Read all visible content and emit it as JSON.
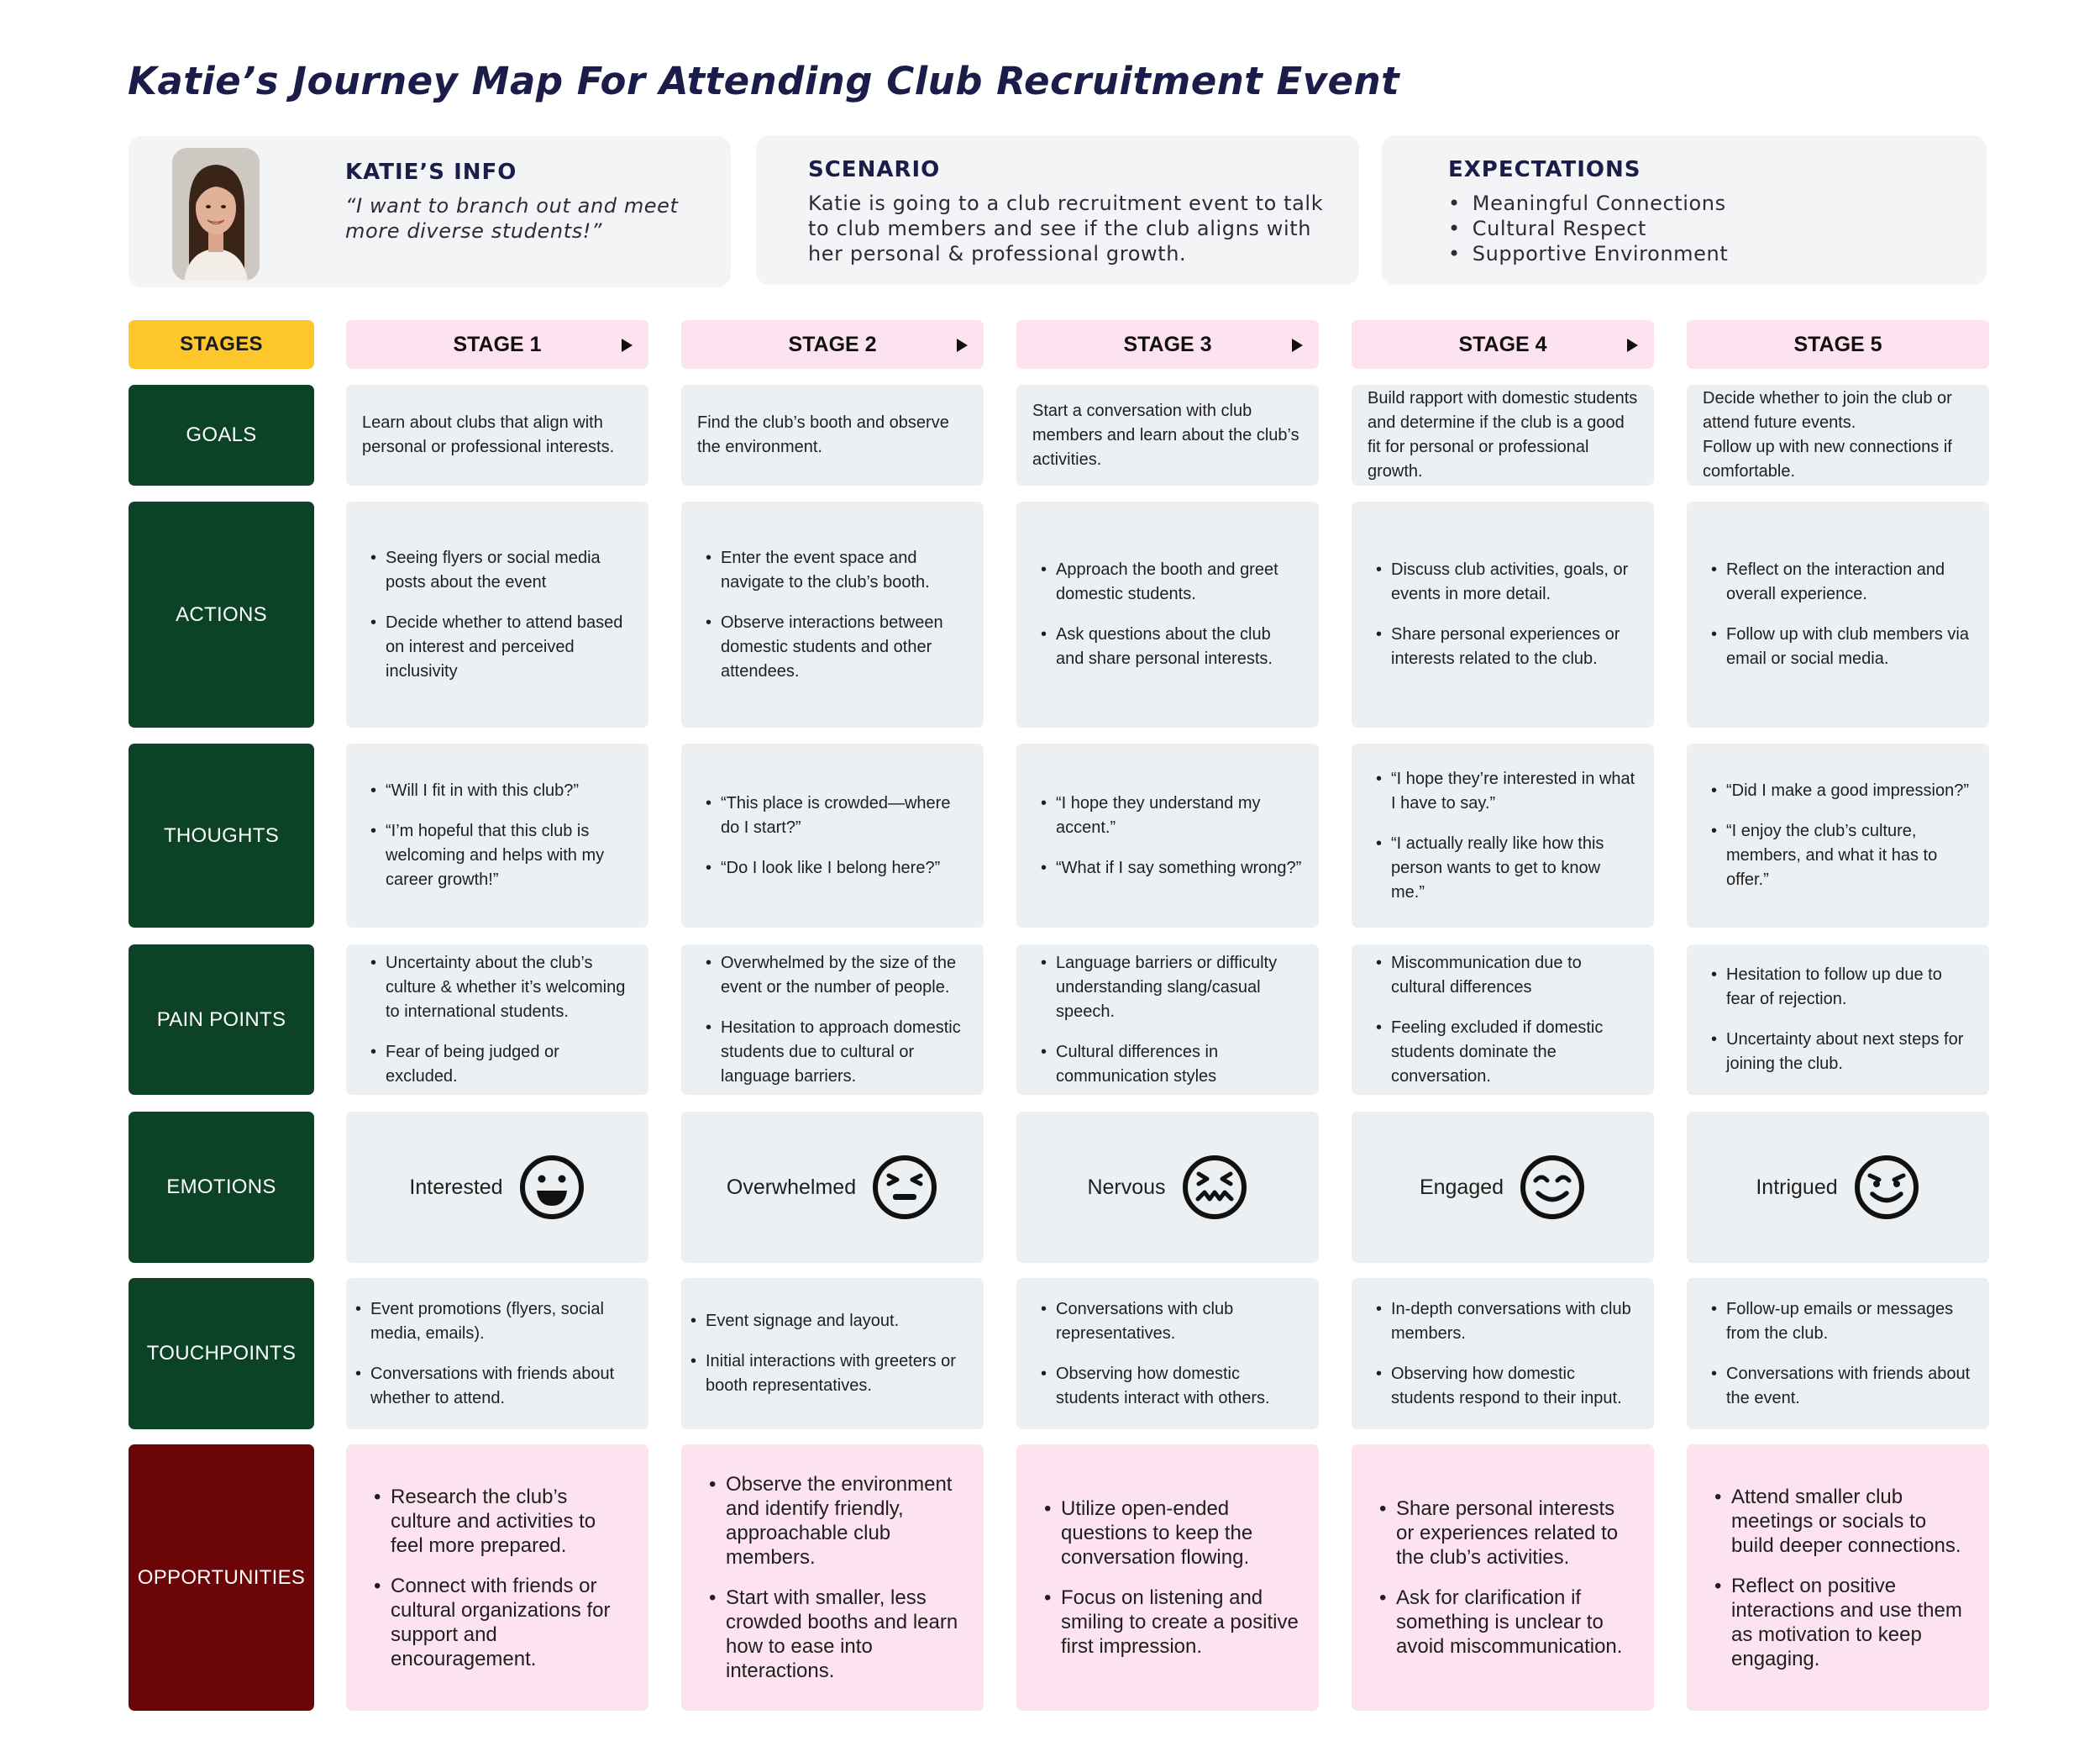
{
  "title": "Katie’s Journey Map For Attending Club Recruitment Event",
  "info": {
    "heading": "KATIE’S INFO",
    "quote": "“I want to branch out and meet more diverse students!”"
  },
  "scenario": {
    "heading": "SCENARIO",
    "text": "Katie is going to a club recruitment event to talk to club members and see if the club aligns with her personal & professional growth."
  },
  "expectations": {
    "heading": "EXPECTATIONS",
    "items": [
      "Meaningful Connections",
      "Cultural Respect",
      "Supportive Environment"
    ]
  },
  "row_labels": {
    "stages": "STAGES",
    "goals": "GOALS",
    "actions": "ACTIONS",
    "thoughts": "THOUGHTS",
    "pain_points": "PAIN POINTS",
    "emotions": "EMOTIONS",
    "touchpoints": "TOUCHPOINTS",
    "opportunities": "OPPORTUNITIES"
  },
  "stages": [
    {
      "name": "STAGE 1",
      "goal": "Learn about clubs that align with personal or professional interests.",
      "actions": [
        "Seeing flyers or social media posts about the event",
        "Decide whether to attend based on interest and perceived inclusivity"
      ],
      "thoughts": [
        "“Will I fit in with this club?”",
        "“I’m hopeful that this club is welcoming and helps with my career growth!”"
      ],
      "pain_points": [
        "Uncertainty about the club’s culture & whether it’s welcoming to international students.",
        "Fear of being judged or excluded."
      ],
      "emotion": "Interested",
      "emotion_icon": "grinning-face-icon",
      "touchpoints": [
        "Event promotions (flyers, social media, emails).",
        "Conversations with friends about whether to attend."
      ],
      "opportunities": [
        "Research the club’s culture and activities to feel more prepared.",
        "Connect with friends or cultural organizations for support and encouragement."
      ]
    },
    {
      "name": "STAGE 2",
      "goal": "Find the club’s booth and observe the environment.",
      "actions": [
        "Enter the event space and navigate to the club’s booth.",
        "Observe interactions between domestic students and other attendees."
      ],
      "thoughts": [
        "“This place is crowded—where do I start?”",
        "“Do I look like I belong here?”"
      ],
      "pain_points": [
        "Overwhelmed by the size of the event or the number of people.",
        "Hesitation to approach domestic students due to cultural or language barriers."
      ],
      "emotion": "Overwhelmed",
      "emotion_icon": "overwhelmed-face-icon",
      "touchpoints": [
        "Event signage and layout.",
        "Initial interactions with greeters or booth representatives."
      ],
      "opportunities": [
        "Observe the environment and identify friendly, approachable club members.",
        "Start with smaller, less crowded booths and learn how to ease into interactions."
      ]
    },
    {
      "name": "STAGE 3",
      "goal": "Start a conversation with club members and learn about the club’s activities.",
      "actions": [
        "Approach the booth and greet domestic students.",
        "Ask questions about the club and share personal interests."
      ],
      "thoughts": [
        "“I hope they understand my accent.”",
        "“What if I say something wrong?”"
      ],
      "pain_points": [
        "Language barriers or difficulty understanding slang/casual speech.",
        "Cultural differences in communication styles"
      ],
      "emotion": "Nervous",
      "emotion_icon": "nervous-face-icon",
      "touchpoints": [
        "Conversations with club representatives.",
        "Observing how domestic students interact with others."
      ],
      "opportunities": [
        "Utilize open-ended questions to keep the conversation flowing.",
        "Focus on listening and smiling to create a positive first impression."
      ]
    },
    {
      "name": "STAGE 4",
      "goal": "Build rapport with domestic students and determine if the club is a good fit for personal or professional growth.",
      "actions": [
        "Discuss club activities, goals, or events in more detail.",
        "Share personal experiences or interests related to the club."
      ],
      "thoughts": [
        "“I hope they’re interested in what I have to say.”",
        "“I actually really like how this person wants to get to know me.”"
      ],
      "pain_points": [
        "Miscommunication due to cultural differences",
        "Feeling excluded if domestic students dominate the conversation."
      ],
      "emotion": "Engaged",
      "emotion_icon": "content-face-icon",
      "touchpoints": [
        "In-depth conversations with club members.",
        "Observing how domestic students respond to their input."
      ],
      "opportunities": [
        "Share personal interests or experiences related to the club’s activities.",
        "Ask for clarification if something is unclear to avoid miscommunication."
      ]
    },
    {
      "name": "STAGE 5",
      "goal": "Decide whether to join the club or attend future events.\nFollow up with new connections if comfortable.",
      "actions": [
        "Reflect on the interaction and overall experience.",
        "Follow up with club members via email or social media."
      ],
      "thoughts": [
        "“Did I make a good impression?”",
        "“I enjoy the club’s culture, members, and what it has to offer.”"
      ],
      "pain_points": [
        "Hesitation to follow up due to fear of rejection.",
        "Uncertainty about next steps for joining the club."
      ],
      "emotion": "Intrigued",
      "emotion_icon": "smirking-face-icon",
      "touchpoints": [
        "Follow-up emails or messages from the club.",
        "Conversations with friends about the event."
      ],
      "opportunities": [
        "Attend smaller club meetings or socials to build deeper connections.",
        "Reflect on positive interactions and use them as motivation to keep engaging."
      ]
    }
  ]
}
